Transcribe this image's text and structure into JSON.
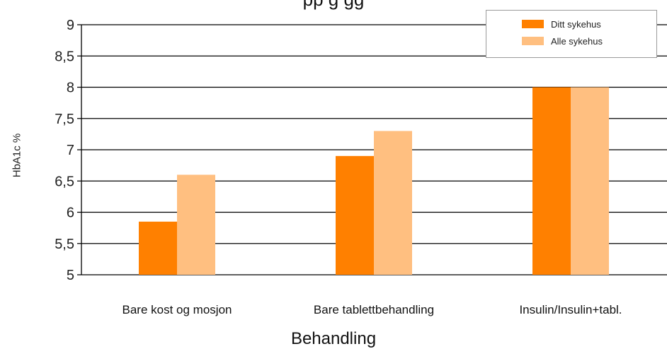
{
  "page": {
    "clipped_title": "pp                                         g                 gg"
  },
  "chart_data": {
    "type": "bar",
    "title": "",
    "xlabel": "Behandling",
    "ylabel": "HbA1c %",
    "categories": [
      "Bare kost og mosjon",
      "Bare tablettbehandling",
      "Insulin/Insulin+tabl."
    ],
    "series": [
      {
        "name": "Ditt sykehus",
        "color": "#FF8000",
        "values": [
          5.85,
          6.9,
          8.0
        ]
      },
      {
        "name": "Alle sykehus",
        "color": "#FFBF80",
        "values": [
          6.6,
          7.3,
          8.0
        ]
      }
    ],
    "ylim": [
      5,
      9
    ],
    "yticks": [
      "5",
      "5,5",
      "6",
      "6,5",
      "7",
      "7,5",
      "8",
      "8,5",
      "9"
    ],
    "grid": true,
    "legend": "top-right"
  }
}
